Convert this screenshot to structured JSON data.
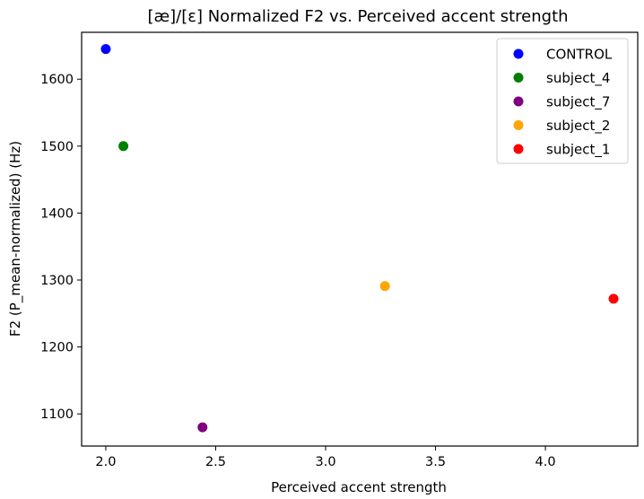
{
  "chart_data": {
    "type": "scatter",
    "title": "[æ]/[ɛ] Normalized F2 vs. Perceived accent strength",
    "xlabel": "Perceived accent strength",
    "ylabel": "F2 (P_mean-normalized) (Hz)",
    "xlim": [
      1.89,
      4.42
    ],
    "ylim": [
      1052,
      1670
    ],
    "xticks": [
      2.0,
      2.5,
      3.0,
      3.5,
      4.0
    ],
    "xtick_labels": [
      "2.0",
      "2.5",
      "3.0",
      "3.5",
      "4.0"
    ],
    "yticks": [
      1100,
      1200,
      1300,
      1400,
      1500,
      1600
    ],
    "ytick_labels": [
      "1100",
      "1200",
      "1300",
      "1400",
      "1500",
      "1600"
    ],
    "grid": false,
    "legend_position": "top-right",
    "series": [
      {
        "name": "CONTROL",
        "color": "#0000ff",
        "points": [
          {
            "x": 2.0,
            "y": 1645
          }
        ]
      },
      {
        "name": "subject_4",
        "color": "#008000",
        "points": [
          {
            "x": 2.08,
            "y": 1500
          }
        ]
      },
      {
        "name": "subject_7",
        "color": "#800080",
        "points": [
          {
            "x": 2.44,
            "y": 1080
          }
        ]
      },
      {
        "name": "subject_2",
        "color": "#ffa500",
        "points": [
          {
            "x": 3.27,
            "y": 1291
          }
        ]
      },
      {
        "name": "subject_1",
        "color": "#ff0000",
        "points": [
          {
            "x": 4.31,
            "y": 1272
          }
        ]
      }
    ]
  }
}
